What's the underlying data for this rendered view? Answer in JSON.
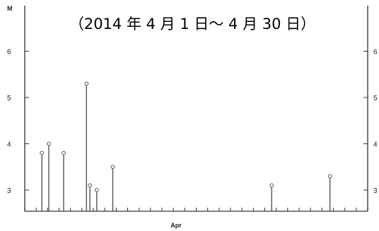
{
  "chart_data": {
    "type": "stem",
    "title": "（2014 年 4 月 1 日～ 4 月 30 日）",
    "ylabel": "M",
    "xlabel": "Apr",
    "xlim": [
      1,
      31
    ],
    "ylim": [
      2.5,
      7.0
    ],
    "y_ticks": [
      3,
      4,
      5,
      6
    ],
    "y_tick_labels": [
      "3",
      "4",
      "5",
      "6"
    ],
    "right_y_tick_labels": [
      "3",
      "4",
      "5",
      "6"
    ],
    "grid": false,
    "points": [
      {
        "x": 2.5,
        "y": 3.8
      },
      {
        "x": 3.1,
        "y": 4.0
      },
      {
        "x": 4.4,
        "y": 3.8
      },
      {
        "x": 6.4,
        "y": 5.3
      },
      {
        "x": 6.7,
        "y": 3.1
      },
      {
        "x": 7.3,
        "y": 3.0
      },
      {
        "x": 8.7,
        "y": 3.5
      },
      {
        "x": 22.6,
        "y": 3.1
      },
      {
        "x": 27.7,
        "y": 3.3
      }
    ]
  }
}
